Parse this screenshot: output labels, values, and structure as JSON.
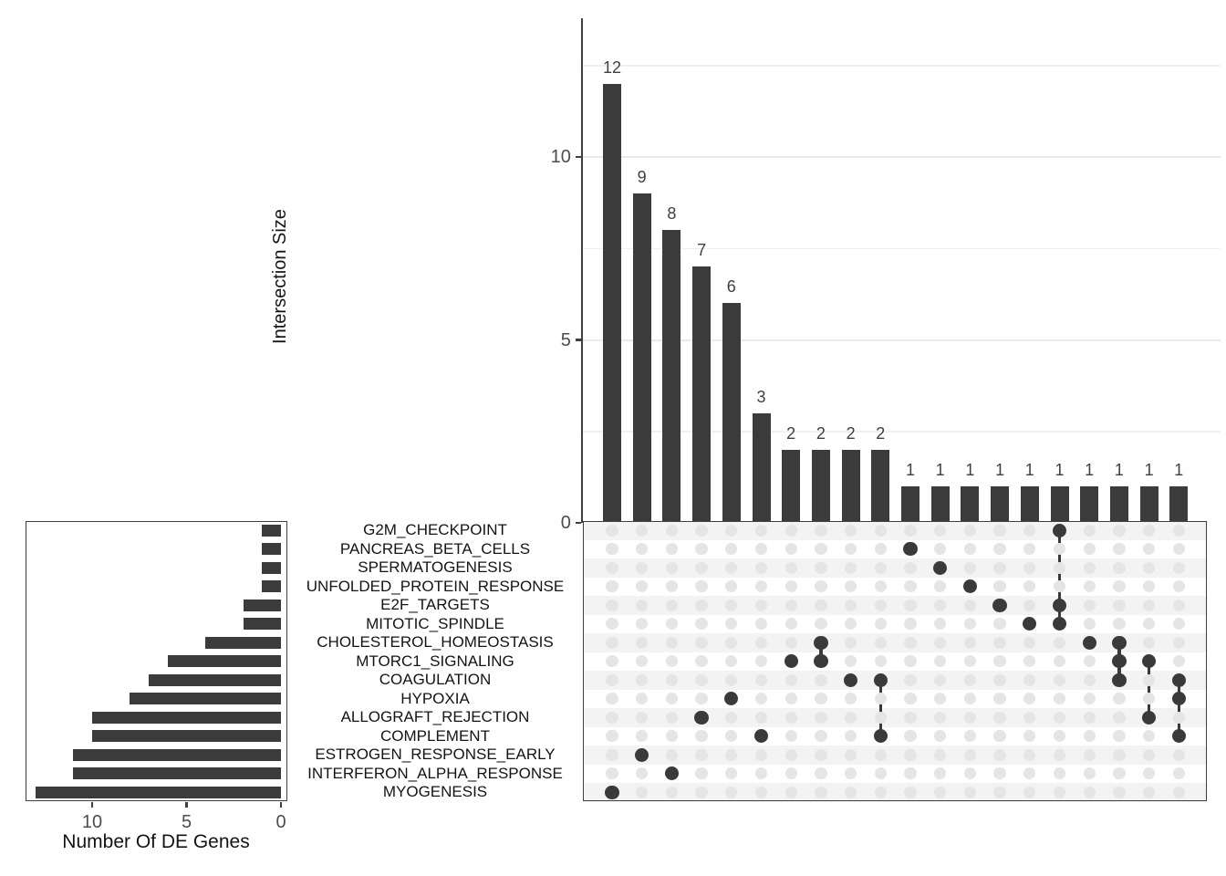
{
  "chart_data": {
    "type": "upset",
    "top_bar": {
      "title": "Intersection Size",
      "values": [
        12,
        9,
        8,
        7,
        6,
        3,
        2,
        2,
        2,
        2,
        1,
        1,
        1,
        1,
        1,
        1,
        1,
        1,
        1,
        1
      ],
      "yticks": [
        0,
        5,
        10
      ],
      "ylim": [
        0,
        13.8
      ],
      "grid": "on",
      "bar_labels_shown": true
    },
    "set_bar": {
      "title": "Number Of DE Genes",
      "xticks": [
        10,
        5,
        0
      ],
      "xlim": [
        13.5,
        0
      ]
    },
    "sets": [
      {
        "name": "G2M_CHECKPOINT",
        "size": 1
      },
      {
        "name": "PANCREAS_BETA_CELLS",
        "size": 1
      },
      {
        "name": "SPERMATOGENESIS",
        "size": 1
      },
      {
        "name": "UNFOLDED_PROTEIN_RESPONSE",
        "size": 1
      },
      {
        "name": "E2F_TARGETS",
        "size": 2
      },
      {
        "name": "MITOTIC_SPINDLE",
        "size": 2
      },
      {
        "name": "CHOLESTEROL_HOMEOSTASIS",
        "size": 4
      },
      {
        "name": "MTORC1_SIGNALING",
        "size": 6
      },
      {
        "name": "COAGULATION",
        "size": 7
      },
      {
        "name": "HYPOXIA",
        "size": 8
      },
      {
        "name": "ALLOGRAFT_REJECTION",
        "size": 10
      },
      {
        "name": "COMPLEMENT",
        "size": 10
      },
      {
        "name": "ESTROGEN_RESPONSE_EARLY",
        "size": 11
      },
      {
        "name": "INTERFERON_ALPHA_RESPONSE",
        "size": 11
      },
      {
        "name": "MYOGENESIS",
        "size": 13
      }
    ],
    "intersections": [
      {
        "size": 12,
        "sets": [
          "MYOGENESIS"
        ]
      },
      {
        "size": 9,
        "sets": [
          "ESTROGEN_RESPONSE_EARLY"
        ]
      },
      {
        "size": 8,
        "sets": [
          "INTERFERON_ALPHA_RESPONSE"
        ]
      },
      {
        "size": 7,
        "sets": [
          "ALLOGRAFT_REJECTION"
        ]
      },
      {
        "size": 6,
        "sets": [
          "HYPOXIA"
        ]
      },
      {
        "size": 3,
        "sets": [
          "COMPLEMENT"
        ]
      },
      {
        "size": 2,
        "sets": [
          "MTORC1_SIGNALING"
        ]
      },
      {
        "size": 2,
        "sets": [
          "CHOLESTEROL_HOMEOSTASIS",
          "MTORC1_SIGNALING"
        ]
      },
      {
        "size": 2,
        "sets": [
          "COAGULATION"
        ]
      },
      {
        "size": 2,
        "sets": [
          "COAGULATION",
          "COMPLEMENT"
        ]
      },
      {
        "size": 1,
        "sets": [
          "PANCREAS_BETA_CELLS"
        ]
      },
      {
        "size": 1,
        "sets": [
          "SPERMATOGENESIS"
        ]
      },
      {
        "size": 1,
        "sets": [
          "UNFOLDED_PROTEIN_RESPONSE"
        ]
      },
      {
        "size": 1,
        "sets": [
          "E2F_TARGETS"
        ]
      },
      {
        "size": 1,
        "sets": [
          "MITOTIC_SPINDLE"
        ]
      },
      {
        "size": 1,
        "sets": [
          "G2M_CHECKPOINT",
          "E2F_TARGETS",
          "MITOTIC_SPINDLE"
        ]
      },
      {
        "size": 1,
        "sets": [
          "CHOLESTEROL_HOMEOSTASIS"
        ]
      },
      {
        "size": 1,
        "sets": [
          "CHOLESTEROL_HOMEOSTASIS",
          "MTORC1_SIGNALING",
          "COAGULATION"
        ]
      },
      {
        "size": 1,
        "sets": [
          "MTORC1_SIGNALING",
          "ALLOGRAFT_REJECTION"
        ]
      },
      {
        "size": 1,
        "sets": [
          "COAGULATION",
          "HYPOXIA",
          "COMPLEMENT"
        ]
      }
    ],
    "colors": {
      "bar": "#3b3b3b",
      "dot_active": "#3a3a3a",
      "dot_inactive": "#e5e5e5",
      "row_stripe": "#f3f3f3",
      "grid_major": "#e9e9e9",
      "grid_minor": "#f0f0f0",
      "axis_line": "#3f3f3f",
      "tick_text": "#4d4d4d",
      "bar_label_text": "#404040",
      "title_text": "#141414"
    }
  }
}
